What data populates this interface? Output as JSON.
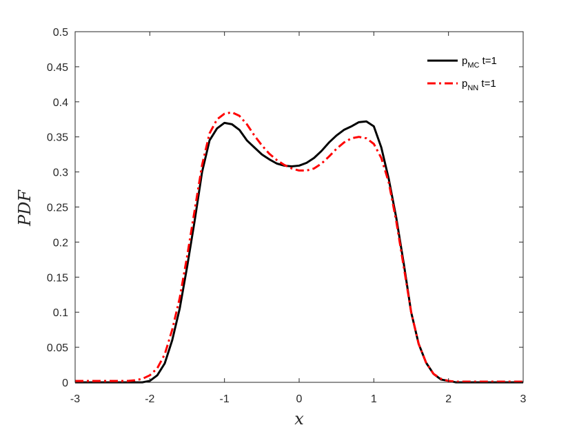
{
  "chart_data": {
    "type": "line",
    "title": "",
    "xlabel": "x",
    "ylabel": "PDF",
    "xlim": [
      -3,
      3
    ],
    "ylim": [
      0,
      0.5
    ],
    "xticks": [
      -3,
      -2,
      -1,
      0,
      1,
      2,
      3
    ],
    "xtick_labels": [
      "-3",
      "-2",
      "-1",
      "0",
      "1",
      "2",
      "3"
    ],
    "yticks": [
      0,
      0.05,
      0.1,
      0.15,
      0.2,
      0.25,
      0.3,
      0.35,
      0.4,
      0.45,
      0.5
    ],
    "ytick_labels": [
      "0",
      "0.05",
      "0.1",
      "0.15",
      "0.2",
      "0.25",
      "0.3",
      "0.35",
      "0.4",
      "0.45",
      "0.5"
    ],
    "grid": false,
    "legend_position": "top-right",
    "series": [
      {
        "name": "p_MC t=1",
        "legend_main": "p",
        "legend_sub": "MC",
        "legend_suffix": " t=1",
        "color": "#000000",
        "style": "solid",
        "x": [
          -3.0,
          -2.5,
          -2.3,
          -2.2,
          -2.1,
          -2.0,
          -1.9,
          -1.8,
          -1.7,
          -1.6,
          -1.5,
          -1.4,
          -1.3,
          -1.2,
          -1.1,
          -1.0,
          -0.9,
          -0.8,
          -0.7,
          -0.6,
          -0.5,
          -0.4,
          -0.3,
          -0.2,
          -0.1,
          0.0,
          0.1,
          0.2,
          0.3,
          0.4,
          0.5,
          0.6,
          0.7,
          0.8,
          0.9,
          1.0,
          1.1,
          1.2,
          1.3,
          1.4,
          1.5,
          1.6,
          1.7,
          1.8,
          1.9,
          2.0,
          2.1,
          2.2,
          2.5,
          3.0
        ],
        "y": [
          0.0,
          0.0,
          0.0,
          0.0,
          0.0,
          0.002,
          0.01,
          0.027,
          0.06,
          0.105,
          0.165,
          0.23,
          0.3,
          0.345,
          0.362,
          0.37,
          0.368,
          0.36,
          0.345,
          0.335,
          0.325,
          0.318,
          0.312,
          0.309,
          0.308,
          0.309,
          0.313,
          0.32,
          0.33,
          0.342,
          0.352,
          0.36,
          0.365,
          0.371,
          0.372,
          0.365,
          0.335,
          0.29,
          0.235,
          0.17,
          0.1,
          0.055,
          0.028,
          0.012,
          0.004,
          0.002,
          0.0,
          0.0,
          0.0,
          0.0
        ]
      },
      {
        "name": "p_NN t=1",
        "legend_main": "p",
        "legend_sub": "NN",
        "legend_suffix": " t=1",
        "color": "#ff0000",
        "style": "dash-dot",
        "x": [
          -3.0,
          -2.5,
          -2.3,
          -2.2,
          -2.1,
          -2.0,
          -1.9,
          -1.8,
          -1.7,
          -1.6,
          -1.5,
          -1.4,
          -1.3,
          -1.2,
          -1.1,
          -1.0,
          -0.9,
          -0.8,
          -0.7,
          -0.6,
          -0.5,
          -0.4,
          -0.3,
          -0.2,
          -0.1,
          0.0,
          0.1,
          0.2,
          0.3,
          0.4,
          0.5,
          0.6,
          0.7,
          0.8,
          0.9,
          1.0,
          1.1,
          1.2,
          1.3,
          1.4,
          1.5,
          1.6,
          1.7,
          1.8,
          1.9,
          2.0,
          2.1,
          2.2,
          2.5,
          3.0
        ],
        "y": [
          0.002,
          0.002,
          0.002,
          0.003,
          0.005,
          0.01,
          0.02,
          0.04,
          0.075,
          0.12,
          0.18,
          0.245,
          0.31,
          0.355,
          0.375,
          0.383,
          0.385,
          0.38,
          0.368,
          0.352,
          0.338,
          0.326,
          0.317,
          0.31,
          0.305,
          0.302,
          0.302,
          0.305,
          0.312,
          0.322,
          0.333,
          0.342,
          0.348,
          0.35,
          0.348,
          0.34,
          0.32,
          0.285,
          0.23,
          0.165,
          0.1,
          0.055,
          0.028,
          0.012,
          0.005,
          0.002,
          0.001,
          0.001,
          0.001,
          0.001
        ]
      }
    ]
  }
}
